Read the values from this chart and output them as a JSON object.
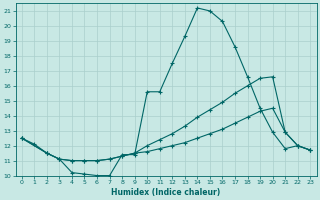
{
  "xlabel": "Humidex (Indice chaleur)",
  "ylabel": "",
  "xlim": [
    -0.5,
    23.5
  ],
  "ylim": [
    10,
    21.5
  ],
  "yticks": [
    10,
    11,
    12,
    13,
    14,
    15,
    16,
    17,
    18,
    19,
    20,
    21
  ],
  "xticks": [
    0,
    1,
    2,
    3,
    4,
    5,
    6,
    7,
    8,
    9,
    10,
    11,
    12,
    13,
    14,
    15,
    16,
    17,
    18,
    19,
    20,
    21,
    22,
    23
  ],
  "bg_color": "#c8e8e4",
  "grid_color": "#aacfcc",
  "line_color": "#006666",
  "line1_x": [
    0,
    1,
    2,
    3,
    4,
    5,
    6,
    7,
    8,
    9,
    10,
    11,
    12,
    13,
    14,
    15,
    16,
    17,
    18,
    19,
    20,
    21,
    22,
    23
  ],
  "line1_y": [
    12.5,
    12.1,
    11.5,
    11.1,
    10.2,
    10.1,
    10.0,
    10.0,
    11.4,
    11.4,
    15.6,
    15.6,
    17.5,
    19.3,
    21.2,
    21.0,
    20.3,
    18.6,
    16.6,
    14.5,
    12.9,
    11.8,
    12.0,
    11.7
  ],
  "line2_x": [
    0,
    2,
    3,
    4,
    5,
    6,
    7,
    8,
    9,
    10,
    11,
    12,
    13,
    14,
    15,
    16,
    17,
    18,
    19,
    20,
    21,
    22,
    23
  ],
  "line2_y": [
    12.5,
    11.5,
    11.1,
    11.0,
    11.0,
    11.0,
    11.1,
    11.3,
    11.5,
    12.0,
    12.4,
    12.8,
    13.3,
    13.9,
    14.4,
    14.9,
    15.5,
    16.0,
    16.5,
    16.6,
    12.9,
    12.0,
    11.7
  ],
  "line3_x": [
    0,
    2,
    3,
    4,
    5,
    6,
    7,
    8,
    9,
    10,
    11,
    12,
    13,
    14,
    15,
    16,
    17,
    18,
    19,
    20,
    21,
    22,
    23
  ],
  "line3_y": [
    12.5,
    11.5,
    11.1,
    11.0,
    11.0,
    11.0,
    11.1,
    11.3,
    11.5,
    11.6,
    11.8,
    12.0,
    12.2,
    12.5,
    12.8,
    13.1,
    13.5,
    13.9,
    14.3,
    14.5,
    12.9,
    12.0,
    11.7
  ]
}
